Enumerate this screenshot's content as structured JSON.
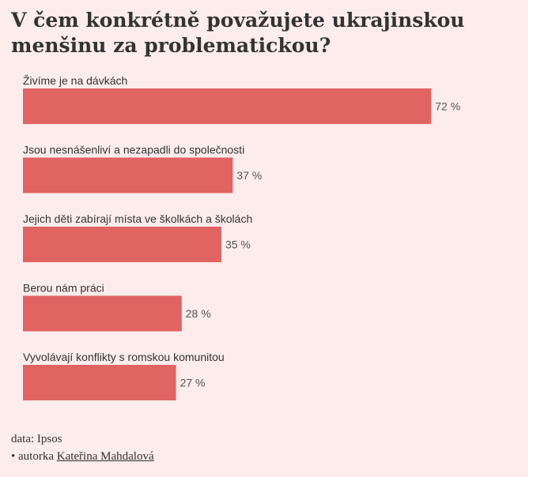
{
  "chart_data": {
    "type": "bar",
    "orientation": "horizontal",
    "title": "V čem konkrétně považujete ukrajinskou menšinu za problematickou?",
    "categories": [
      "Živíme je na dávkách",
      "Jsou nesnášenliví a nezapadli do společnosti",
      "Jejich děti zabírají místa ve školkách a školách",
      "Berou nám práci",
      "Vyvolávají konflikty s romskou komunitou"
    ],
    "values": [
      72,
      37,
      35,
      28,
      27
    ],
    "value_labels": [
      "72 %",
      "37 %",
      "35 %",
      "28 %",
      "27 %"
    ],
    "unit": "%",
    "xlim": [
      0,
      80
    ],
    "bar_color": "#e06462",
    "grid": false
  },
  "footer": {
    "source": "data: Ipsos",
    "author_prefix": "• autorka",
    "author_name": "Kateřina Mahdalová"
  },
  "colors": {
    "background": "#fcecec",
    "bar": "#e06462",
    "text": "#333333"
  }
}
